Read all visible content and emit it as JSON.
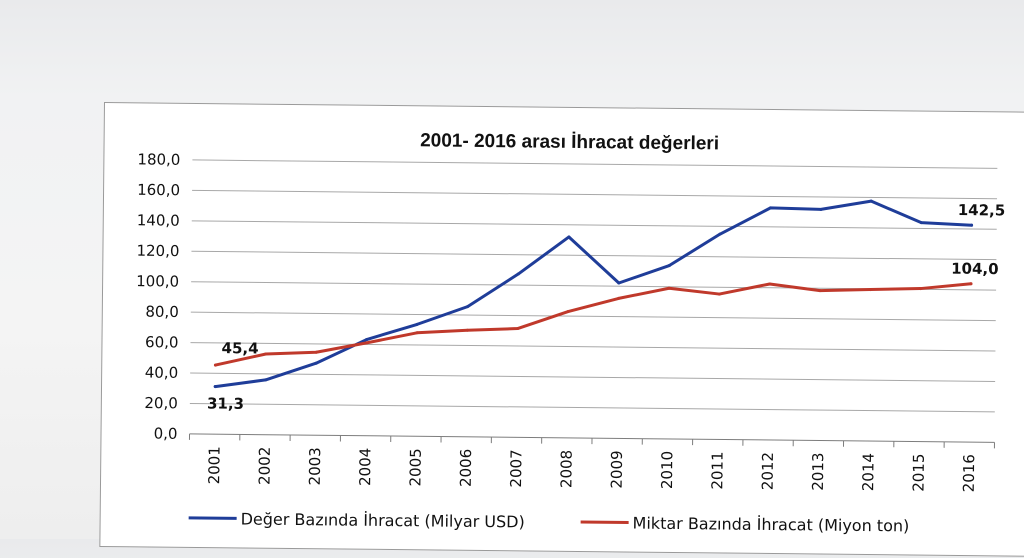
{
  "chart_data": {
    "type": "line",
    "title": "2001- 2016 arası İhracat değerleri",
    "x": [
      "2001",
      "2002",
      "2003",
      "2004",
      "2005",
      "2006",
      "2007",
      "2008",
      "2009",
      "2010",
      "2011",
      "2012",
      "2013",
      "2014",
      "2015",
      "2016"
    ],
    "yticks": [
      "0,0",
      "20,0",
      "40,0",
      "60,0",
      "80,0",
      "100,0",
      "120,0",
      "140,0",
      "160,0",
      "180,0"
    ],
    "ylim": [
      0,
      180
    ],
    "grid": true,
    "legend_position": "bottom",
    "series": [
      {
        "name": "Değer Bazında İhracat (Milyar USD)",
        "color": "#1f3d99",
        "values": [
          31.3,
          36.0,
          47.3,
          63.2,
          73.5,
          85.5,
          107.3,
          132.0,
          102.1,
          113.9,
          134.9,
          152.5,
          151.8,
          157.6,
          143.8,
          142.5
        ]
      },
      {
        "name": "Miktar Bazında İhracat (Miyon ton)",
        "color": "#c0392b",
        "values": [
          45.4,
          53.0,
          54.5,
          61.0,
          68.0,
          70.0,
          71.5,
          83.0,
          92.0,
          99.0,
          95.5,
          102.5,
          98.5,
          99.5,
          100.5,
          104.0
        ]
      }
    ],
    "annotations": [
      {
        "series": 1,
        "index": 0,
        "text": "45,4"
      },
      {
        "series": 0,
        "index": 0,
        "text": "31,3"
      },
      {
        "series": 0,
        "index": 15,
        "text": "142,5"
      },
      {
        "series": 1,
        "index": 15,
        "text": "104,0"
      }
    ]
  }
}
